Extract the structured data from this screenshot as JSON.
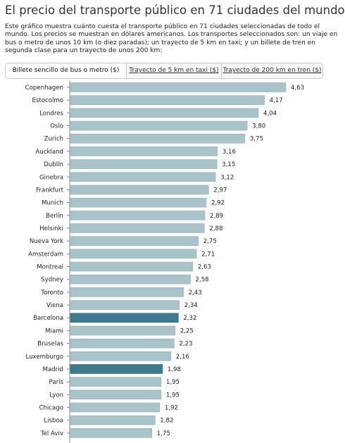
{
  "title": "El precio del transporte público en 71 ciudades del mundo",
  "description": "Este gráfico muestra cuánto cuesta el transporte público en 71 ciudades seleccionadas de todo el mundo. Los precios se muestran en dólares americanos. Los transportes seleccionados son: un viaje en bus o metro de unos 10 km (o diez paradas); un trayecto de 5 km en taxi; y un billete de tren en segunda clase para un trayecto de unos 200 km:",
  "tabs": [
    {
      "label": "Billete sencillo de bus o metro ($)",
      "active": true
    },
    {
      "label": "Trayecto de 5 km en taxi ($)",
      "active": false
    },
    {
      "label": "Trayecto de 200 km en tren ($)",
      "active": false
    }
  ],
  "colors": {
    "bar": "#a9c3ca",
    "highlight": "#3d7a8e"
  },
  "chart_data": {
    "type": "bar",
    "orientation": "horizontal",
    "categories": [
      "Copenhagen",
      "Estocolmo",
      "Londres",
      "Oslo",
      "Zurich",
      "Auckland",
      "Dublín",
      "Ginebra",
      "Frankfurt",
      "Munich",
      "Berlín",
      "Helsinki",
      "Nueva York",
      "Amsterdam",
      "Montreal",
      "Sydney",
      "Toronto",
      "Viena",
      "Barcelona",
      "Miami",
      "Bruselas",
      "Luxemburgo",
      "Madrid",
      "París",
      "Lyon",
      "Chicago",
      "Lisboa",
      "Tel Aviv"
    ],
    "values": [
      4.63,
      4.17,
      4.04,
      3.8,
      3.75,
      3.16,
      3.15,
      3.12,
      2.97,
      2.92,
      2.89,
      2.88,
      2.75,
      2.71,
      2.63,
      2.58,
      2.43,
      2.34,
      2.32,
      2.25,
      2.23,
      2.16,
      1.98,
      1.95,
      1.95,
      1.92,
      1.82,
      1.75
    ],
    "labels": [
      "4,63",
      "4,17",
      "4,04",
      "3,80",
      "3,75",
      "3,16",
      "3,15",
      "3,12",
      "2,97",
      "2,92",
      "2,89",
      "2,88",
      "2,75",
      "2,71",
      "2,63",
      "2,58",
      "2,43",
      "2,34",
      "2,32",
      "2,25",
      "2,23",
      "2,16",
      "1,98",
      "1,95",
      "1,95",
      "1,92",
      "1,82",
      "1,75"
    ],
    "highlighted": [
      "Barcelona",
      "Madrid"
    ],
    "title": "",
    "xlabel": "",
    "ylabel": ""
  }
}
